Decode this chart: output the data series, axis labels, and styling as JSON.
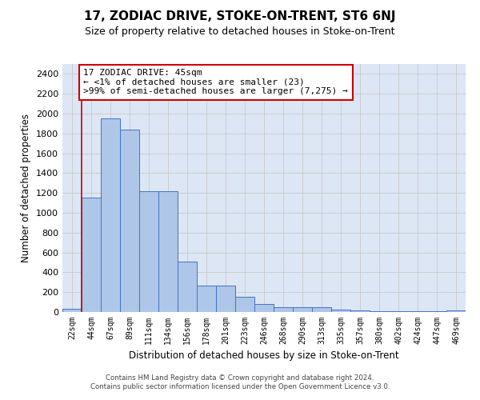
{
  "title": "17, ZODIAC DRIVE, STOKE-ON-TRENT, ST6 6NJ",
  "subtitle": "Size of property relative to detached houses in Stoke-on-Trent",
  "xlabel": "Distribution of detached houses by size in Stoke-on-Trent",
  "ylabel": "Number of detached properties",
  "categories": [
    "22sqm",
    "44sqm",
    "67sqm",
    "89sqm",
    "111sqm",
    "134sqm",
    "156sqm",
    "178sqm",
    "201sqm",
    "223sqm",
    "246sqm",
    "268sqm",
    "290sqm",
    "313sqm",
    "335sqm",
    "357sqm",
    "380sqm",
    "402sqm",
    "424sqm",
    "447sqm",
    "469sqm"
  ],
  "values": [
    30,
    1150,
    1950,
    1840,
    1215,
    1215,
    510,
    270,
    270,
    155,
    80,
    50,
    45,
    45,
    25,
    15,
    10,
    10,
    10,
    5,
    15
  ],
  "bar_color": "#aec6e8",
  "bar_edge_color": "#4472c4",
  "annotation_text": "17 ZODIAC DRIVE: 45sqm\n← <1% of detached houses are smaller (23)\n>99% of semi-detached houses are larger (7,275) →",
  "annotation_box_color": "#ffffff",
  "annotation_box_edge": "#cc0000",
  "ylim": [
    0,
    2500
  ],
  "yticks": [
    0,
    200,
    400,
    600,
    800,
    1000,
    1200,
    1400,
    1600,
    1800,
    2000,
    2200,
    2400
  ],
  "grid_color": "#cccccc",
  "bg_color": "#dce6f5",
  "footer": "Contains HM Land Registry data © Crown copyright and database right 2024.\nContains public sector information licensed under the Open Government Licence v3.0.",
  "red_line_color": "#cc0000",
  "title_fontsize": 11,
  "subtitle_fontsize": 9
}
